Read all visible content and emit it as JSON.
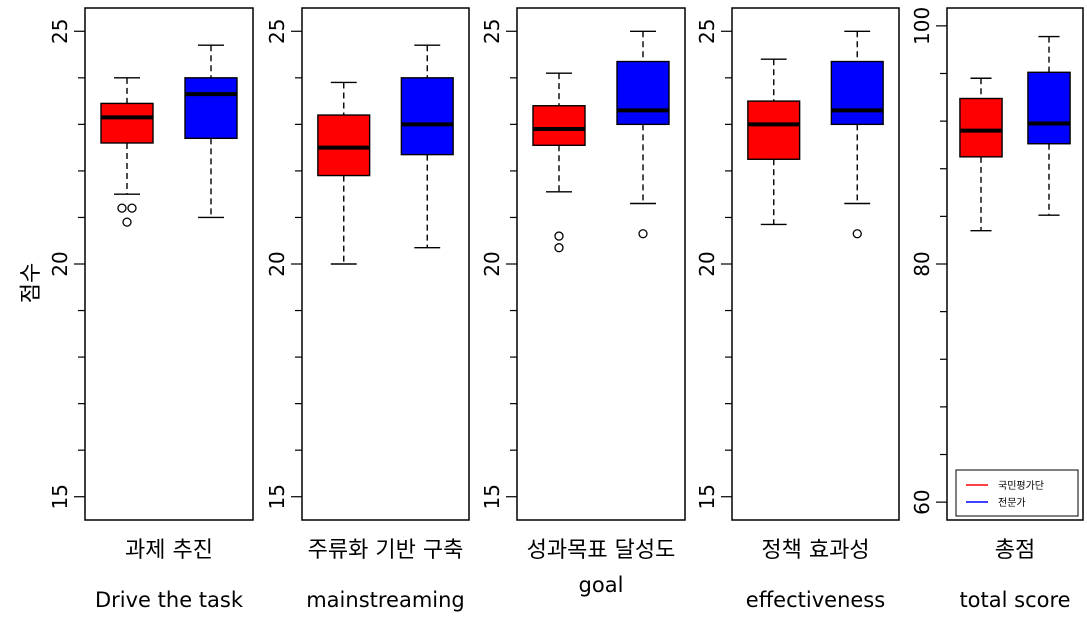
{
  "chart_data": [
    {
      "type": "box",
      "category": "과제 추진",
      "english_label": "Drive the task",
      "ylabel": "점수",
      "ylim": [
        14.5,
        25.5
      ],
      "yticks": [
        "15",
        "20",
        "25"
      ],
      "series": [
        {
          "name": "국민평가단",
          "color": "#ff0000",
          "whisker_low": 21.5,
          "q1": 22.6,
          "median": 23.15,
          "q3": 23.45,
          "whisker_high": 24.0,
          "outliers": [
            20.9,
            21.2,
            21.2
          ]
        },
        {
          "name": "전문가",
          "color": "#0000ff",
          "whisker_low": 21.0,
          "q1": 22.7,
          "median": 23.65,
          "q3": 24.0,
          "whisker_high": 24.7,
          "outliers": []
        }
      ]
    },
    {
      "type": "box",
      "category": "주류화 기반 구축",
      "english_label": "mainstreaming",
      "ylim": [
        14.5,
        25.5
      ],
      "yticks": [
        "15",
        "20",
        "25"
      ],
      "series": [
        {
          "name": "국민평가단",
          "color": "#ff0000",
          "whisker_low": 20.0,
          "q1": 21.9,
          "median": 22.5,
          "q3": 23.2,
          "whisker_high": 23.9,
          "outliers": []
        },
        {
          "name": "전문가",
          "color": "#0000ff",
          "whisker_low": 20.35,
          "q1": 22.35,
          "median": 23.0,
          "q3": 24.0,
          "whisker_high": 24.7,
          "outliers": []
        }
      ]
    },
    {
      "type": "box",
      "category": "성과목표 달성도",
      "english_label": "goal",
      "ylim": [
        14.5,
        25.5
      ],
      "yticks": [
        "15",
        "20",
        "25"
      ],
      "series": [
        {
          "name": "국민평가단",
          "color": "#ff0000",
          "whisker_low": 21.55,
          "q1": 22.55,
          "median": 22.9,
          "q3": 23.4,
          "whisker_high": 24.1,
          "outliers": [
            20.35,
            20.6
          ]
        },
        {
          "name": "전문가",
          "color": "#0000ff",
          "whisker_low": 21.3,
          "q1": 23.0,
          "median": 23.3,
          "q3": 24.35,
          "whisker_high": 25.0,
          "outliers": [
            20.65
          ]
        }
      ]
    },
    {
      "type": "box",
      "category": "정책 효과성",
      "english_label": "effectiveness",
      "ylim": [
        14.5,
        25.5
      ],
      "yticks": [
        "15",
        "20",
        "25"
      ],
      "series": [
        {
          "name": "국민평가단",
          "color": "#ff0000",
          "whisker_low": 20.85,
          "q1": 22.25,
          "median": 23.0,
          "q3": 23.5,
          "whisker_high": 24.4,
          "outliers": []
        },
        {
          "name": "전문가",
          "color": "#0000ff",
          "whisker_low": 21.3,
          "q1": 23.0,
          "median": 23.3,
          "q3": 24.35,
          "whisker_high": 25.0,
          "outliers": [
            20.65
          ]
        }
      ]
    },
    {
      "type": "box",
      "category": "총점",
      "english_label": "total score",
      "ylim": [
        58.5,
        101.5
      ],
      "yticks": [
        "60",
        "80",
        "100"
      ],
      "legend": {
        "position": "bottom-right",
        "entries": [
          "국민평가단",
          "전문가"
        ]
      },
      "series": [
        {
          "name": "국민평가단",
          "color": "#ff0000",
          "whisker_low": 82.8,
          "q1": 89.0,
          "median": 91.2,
          "q3": 93.9,
          "whisker_high": 95.6,
          "outliers": []
        },
        {
          "name": "전문가",
          "color": "#0000ff",
          "whisker_low": 84.1,
          "q1": 90.1,
          "median": 91.8,
          "q3": 96.1,
          "whisker_high": 99.1,
          "outliers": []
        }
      ]
    }
  ]
}
